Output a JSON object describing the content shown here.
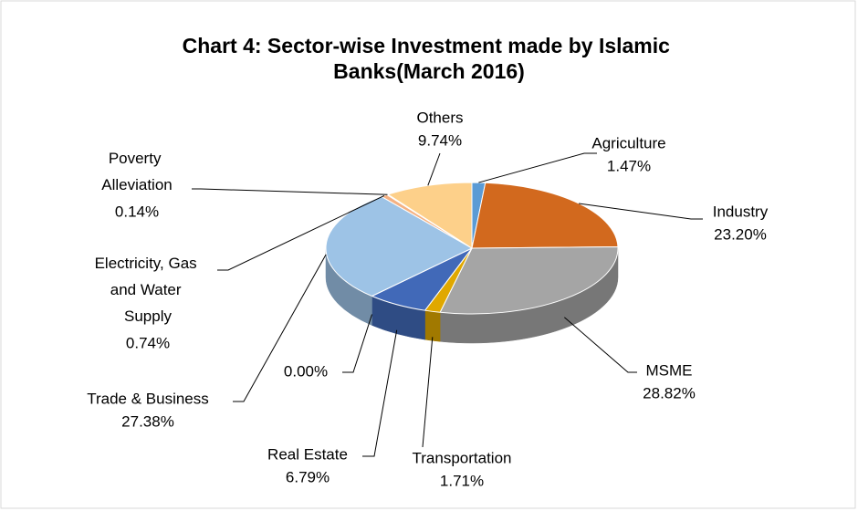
{
  "chart_data": {
    "type": "pie",
    "title": "Chart 4: Sector-wise Investment made by Islamic Banks(March 2016)",
    "categories": [
      "Agriculture",
      "Industry",
      "MSME",
      "Transportation",
      "Real Estate",
      null,
      "Trade & Business",
      "Electricity, Gas and Water Supply",
      "Poverty Alleviation",
      "Others"
    ],
    "values": [
      1.47,
      23.2,
      28.82,
      1.71,
      6.79,
      0.0,
      27.38,
      0.74,
      0.14,
      9.74
    ],
    "value_labels": [
      "1.47%",
      "23.20%",
      "28.82%",
      "1.71%",
      "6.79%",
      "0.00%",
      "27.38%",
      "0.74%",
      "0.14%",
      "9.74%"
    ],
    "colors": [
      "#5b9bd5",
      "#d2691e",
      "#a5a5a5",
      "#e0a800",
      "#4169b8",
      "#70ad47",
      "#9dc3e6",
      "#f4b183",
      "#f2a7a0",
      "#fdd08a"
    ]
  }
}
